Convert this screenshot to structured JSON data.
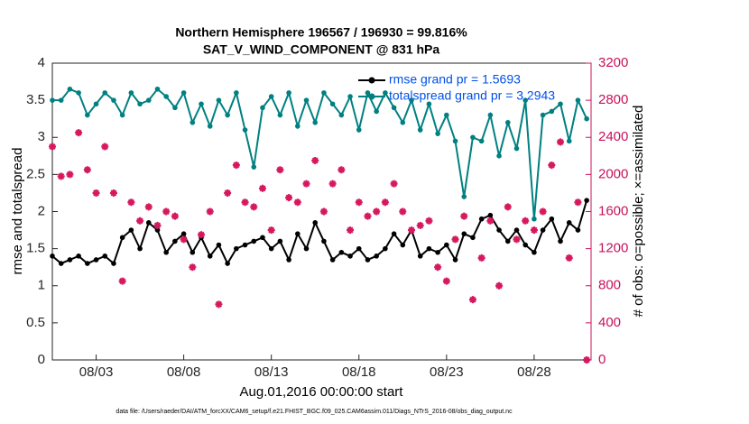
{
  "chart_data": {
    "type": "line",
    "title": "Northern Hemisphere 196567 / 196930 = 99.816%",
    "subtitle": "SAT_V_WIND_COMPONENT @ 831 hPa",
    "xlabel": "Aug.01,2016 00:00:00 start",
    "ylabel": "rmse and totalspread",
    "y2label": "# of obs: o=possible; ×=assimilated",
    "footnote": "data file: /Users/raeder/DAI/ATM_forcXX/CAM6_setup/f.e21.FHIST_BGC.f09_025.CAM6assim.011/Diags_NTrS_2016-08/obs_diag_output.nc",
    "x": [
      0.5,
      1.0,
      1.5,
      2.0,
      2.5,
      3.0,
      3.5,
      4.0,
      4.5,
      5.0,
      5.5,
      6.0,
      6.5,
      7.0,
      7.5,
      8.0,
      8.5,
      9.0,
      9.5,
      10.0,
      10.5,
      11.0,
      11.5,
      12.0,
      12.5,
      13.0,
      13.5,
      14.0,
      14.5,
      15.0,
      15.5,
      16.0,
      16.5,
      17.0,
      17.5,
      18.0,
      18.5,
      19.0,
      19.5,
      20.0,
      20.5,
      21.0,
      21.5,
      22.0,
      22.5,
      23.0,
      23.5,
      24.0,
      24.5,
      25.0,
      25.5,
      26.0,
      26.5,
      27.0,
      27.5,
      28.0,
      28.5,
      29.0,
      29.5,
      30.0,
      30.5,
      31.0
    ],
    "xlim": [
      0.5,
      31.25
    ],
    "xticks": [
      {
        "value": 3,
        "label": "08/03"
      },
      {
        "value": 8,
        "label": "08/08"
      },
      {
        "value": 13,
        "label": "08/13"
      },
      {
        "value": 18,
        "label": "08/18"
      },
      {
        "value": 23,
        "label": "08/23"
      },
      {
        "value": 28,
        "label": "08/28"
      }
    ],
    "ylim": [
      0,
      4
    ],
    "yticks": [
      0,
      0.5,
      1,
      1.5,
      2,
      2.5,
      3,
      3.5,
      4
    ],
    "y2lim": [
      0,
      3200
    ],
    "y2ticks": [
      0,
      400,
      800,
      1200,
      1600,
      2000,
      2400,
      2800,
      3200
    ],
    "y2color": "#c8105a",
    "legend": "upper right",
    "series": [
      {
        "name": "rmse grand pr = 1.5693",
        "color": "#000000",
        "marker": "circle",
        "values": [
          1.4,
          1.3,
          1.35,
          1.4,
          1.3,
          1.35,
          1.4,
          1.3,
          1.65,
          1.75,
          1.5,
          1.85,
          1.75,
          1.45,
          1.6,
          1.7,
          1.45,
          1.65,
          1.4,
          1.55,
          1.3,
          1.5,
          1.55,
          1.6,
          1.65,
          1.5,
          1.6,
          1.35,
          1.7,
          1.5,
          1.85,
          1.6,
          1.35,
          1.45,
          1.4,
          1.5,
          1.35,
          1.4,
          1.5,
          1.7,
          1.55,
          1.75,
          1.4,
          1.5,
          1.45,
          1.55,
          1.35,
          1.7,
          1.65,
          1.9,
          1.95,
          1.75,
          1.6,
          1.75,
          1.55,
          1.45,
          1.75,
          1.9,
          1.6,
          1.85,
          1.75,
          2.15
        ]
      },
      {
        "name": "totalspread grand pr = 3.2943",
        "color": "#008080",
        "marker": "circle",
        "values": [
          3.5,
          3.5,
          3.65,
          3.6,
          3.3,
          3.45,
          3.6,
          3.5,
          3.3,
          3.6,
          3.45,
          3.5,
          3.65,
          3.55,
          3.4,
          3.6,
          3.2,
          3.45,
          3.15,
          3.5,
          3.3,
          3.6,
          3.1,
          2.6,
          3.4,
          3.55,
          3.3,
          3.6,
          3.15,
          3.5,
          3.2,
          3.6,
          3.45,
          3.3,
          3.55,
          3.1,
          3.6,
          3.35,
          3.6,
          3.4,
          3.2,
          3.5,
          3.1,
          3.45,
          3.05,
          3.3,
          2.95,
          2.2,
          3.0,
          2.95,
          3.3,
          2.75,
          3.2,
          2.85,
          3.5,
          1.9,
          3.3,
          3.35,
          3.45,
          2.95,
          3.5,
          3.25
        ]
      },
      {
        "color": "#d6185e",
        "marker": "star",
        "axis": "y2",
        "values": [
          2300,
          1980,
          2000,
          2450,
          2050,
          1800,
          2300,
          1800,
          850,
          1700,
          1500,
          1650,
          1450,
          1600,
          1550,
          1300,
          1000,
          1350,
          1600,
          600,
          1800,
          2100,
          1700,
          1650,
          1850,
          1400,
          2050,
          1750,
          1700,
          1900,
          2150,
          1600,
          1900,
          2050,
          1400,
          1700,
          1550,
          1600,
          1700,
          1900,
          1600,
          1400,
          1450,
          1500,
          1000,
          850,
          1300,
          1550,
          650,
          1100,
          1500,
          800,
          1650,
          1300,
          1500,
          1400,
          1600,
          2100,
          2350,
          1100,
          1700,
          0
        ]
      }
    ]
  }
}
